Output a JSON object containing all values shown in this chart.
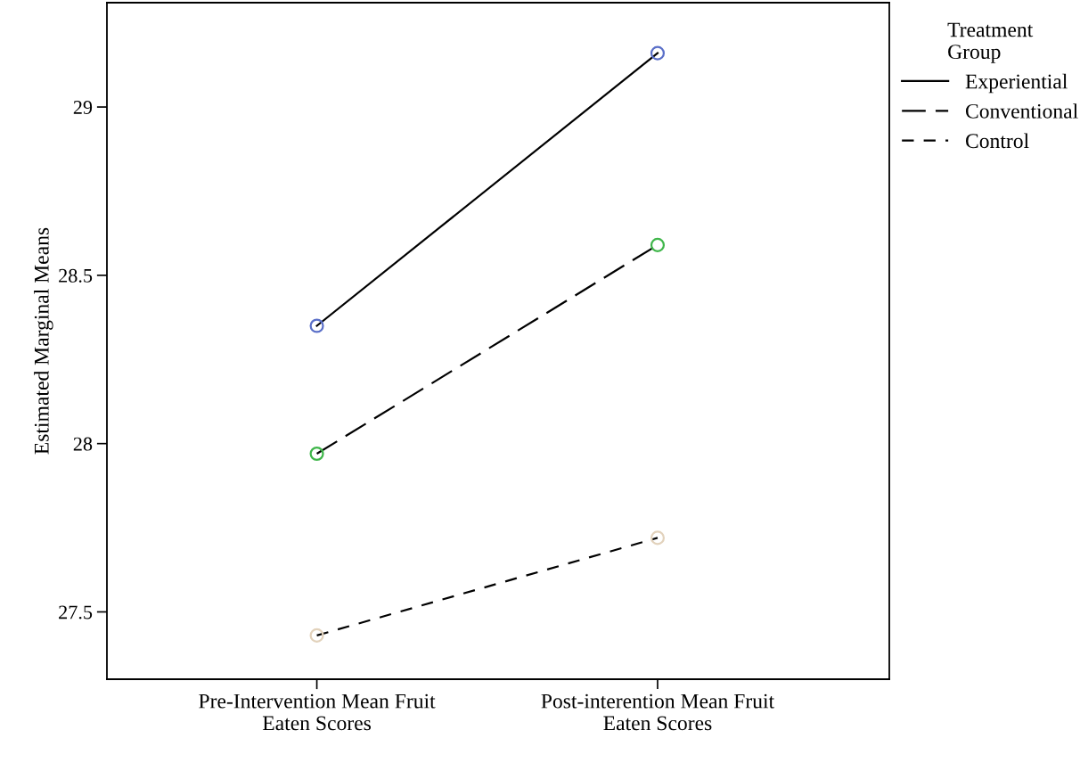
{
  "chart_data": {
    "type": "line",
    "ylabel": "Estimated Marginal Means",
    "legend_title": "Treatment\nGroup",
    "categories": [
      "Pre-Intervention Mean Fruit\nEaten Scores",
      "Post-interention Mean Fruit\nEaten Scores"
    ],
    "series": [
      {
        "name": "Experiential",
        "color": "#5a6fc8",
        "line_style": "solid",
        "values": [
          28.35,
          29.16
        ]
      },
      {
        "name": "Conventional",
        "color": "#3fb64a",
        "line_style": "dashed",
        "values": [
          27.97,
          28.59
        ]
      },
      {
        "name": "Control",
        "color": "#e2d2bc",
        "line_style": "dashed",
        "values": [
          27.43,
          27.72
        ]
      }
    ],
    "ylim": [
      27.3,
      29.31
    ],
    "yticks": [
      27.5,
      28,
      28.5,
      29
    ],
    "marker": "circle",
    "legend": "top right",
    "grid": false
  }
}
